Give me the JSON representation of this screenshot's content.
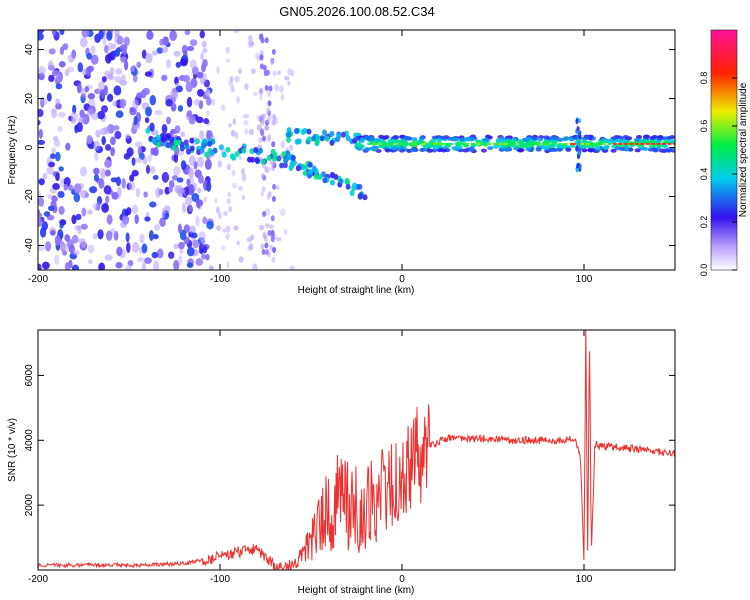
{
  "figure": {
    "title": "GN05.2026.100.08.52.C34",
    "colors": {
      "signal": "#ee3030",
      "axis": "#000000"
    }
  },
  "chart_data": [
    {
      "type": "heatmap",
      "name": "spectrogram",
      "xlabel": "Height of straight line (km)",
      "ylabel": "Frequency (Hz)",
      "xlim": [
        -200,
        150
      ],
      "ylim": [
        -50,
        48
      ],
      "xticks": [
        -200,
        -100,
        0,
        100
      ],
      "yticks": [
        -40,
        -20,
        0,
        20,
        40
      ],
      "colorbar": {
        "label": "Normalized spectral amplitude",
        "range": [
          0,
          1
        ],
        "ticks": [
          "0.0",
          "0.2",
          "0.4",
          "0.6",
          "0.8"
        ],
        "colormap": [
          "#ffffff",
          "#9966ff",
          "#3311ee",
          "#00ccee",
          "#00ee44",
          "#eeee00",
          "#ff2200",
          "#ff1199"
        ]
      },
      "features": [
        {
          "name": "dominant tone band",
          "x_start": -20,
          "x_end": 150,
          "freq_center": 1.5,
          "freq_halfwidth": 4,
          "peak_amplitude": 0.9
        },
        {
          "name": "noisy low-height region",
          "x_start": -200,
          "x_end": -110,
          "amplitude": 0.25
        },
        {
          "name": "spike near 100 km",
          "x": 97,
          "freq_range": [
            -10,
            12
          ]
        }
      ]
    },
    {
      "type": "line",
      "name": "snr",
      "xlabel": "Height of straight line (km)",
      "ylabel": "SNR (10 * v/v)",
      "xlim": [
        -200,
        150
      ],
      "ylim": [
        0,
        7400
      ],
      "xticks": [
        -200,
        -100,
        0,
        100
      ],
      "yticks": [
        2000,
        4000,
        6000
      ],
      "series": [
        {
          "name": "SNR",
          "color": "#ee3030",
          "x": [
            -200,
            -180,
            -160,
            -140,
            -120,
            -100,
            -90,
            -80,
            -75,
            -70,
            -65,
            -60,
            -55,
            -50,
            -45,
            -40,
            -35,
            -30,
            -25,
            -20,
            -15,
            -10,
            -5,
            0,
            5,
            8,
            10,
            15,
            20,
            25,
            30,
            40,
            50,
            60,
            70,
            80,
            90,
            95,
            98,
            100,
            101,
            102,
            103,
            104,
            106,
            110,
            120,
            130,
            140,
            150
          ],
          "values": [
            150,
            150,
            150,
            150,
            200,
            400,
            550,
            650,
            400,
            100,
            100,
            200,
            400,
            900,
            1400,
            1800,
            2200,
            2000,
            1900,
            2000,
            2200,
            2400,
            2700,
            3000,
            3100,
            4200,
            3300,
            3800,
            3950,
            4050,
            4050,
            4050,
            4050,
            4000,
            4000,
            4000,
            4000,
            4050,
            3500,
            200,
            7400,
            200,
            7400,
            500,
            3900,
            3800,
            3800,
            3700,
            3650,
            3600
          ]
        }
      ]
    }
  ]
}
